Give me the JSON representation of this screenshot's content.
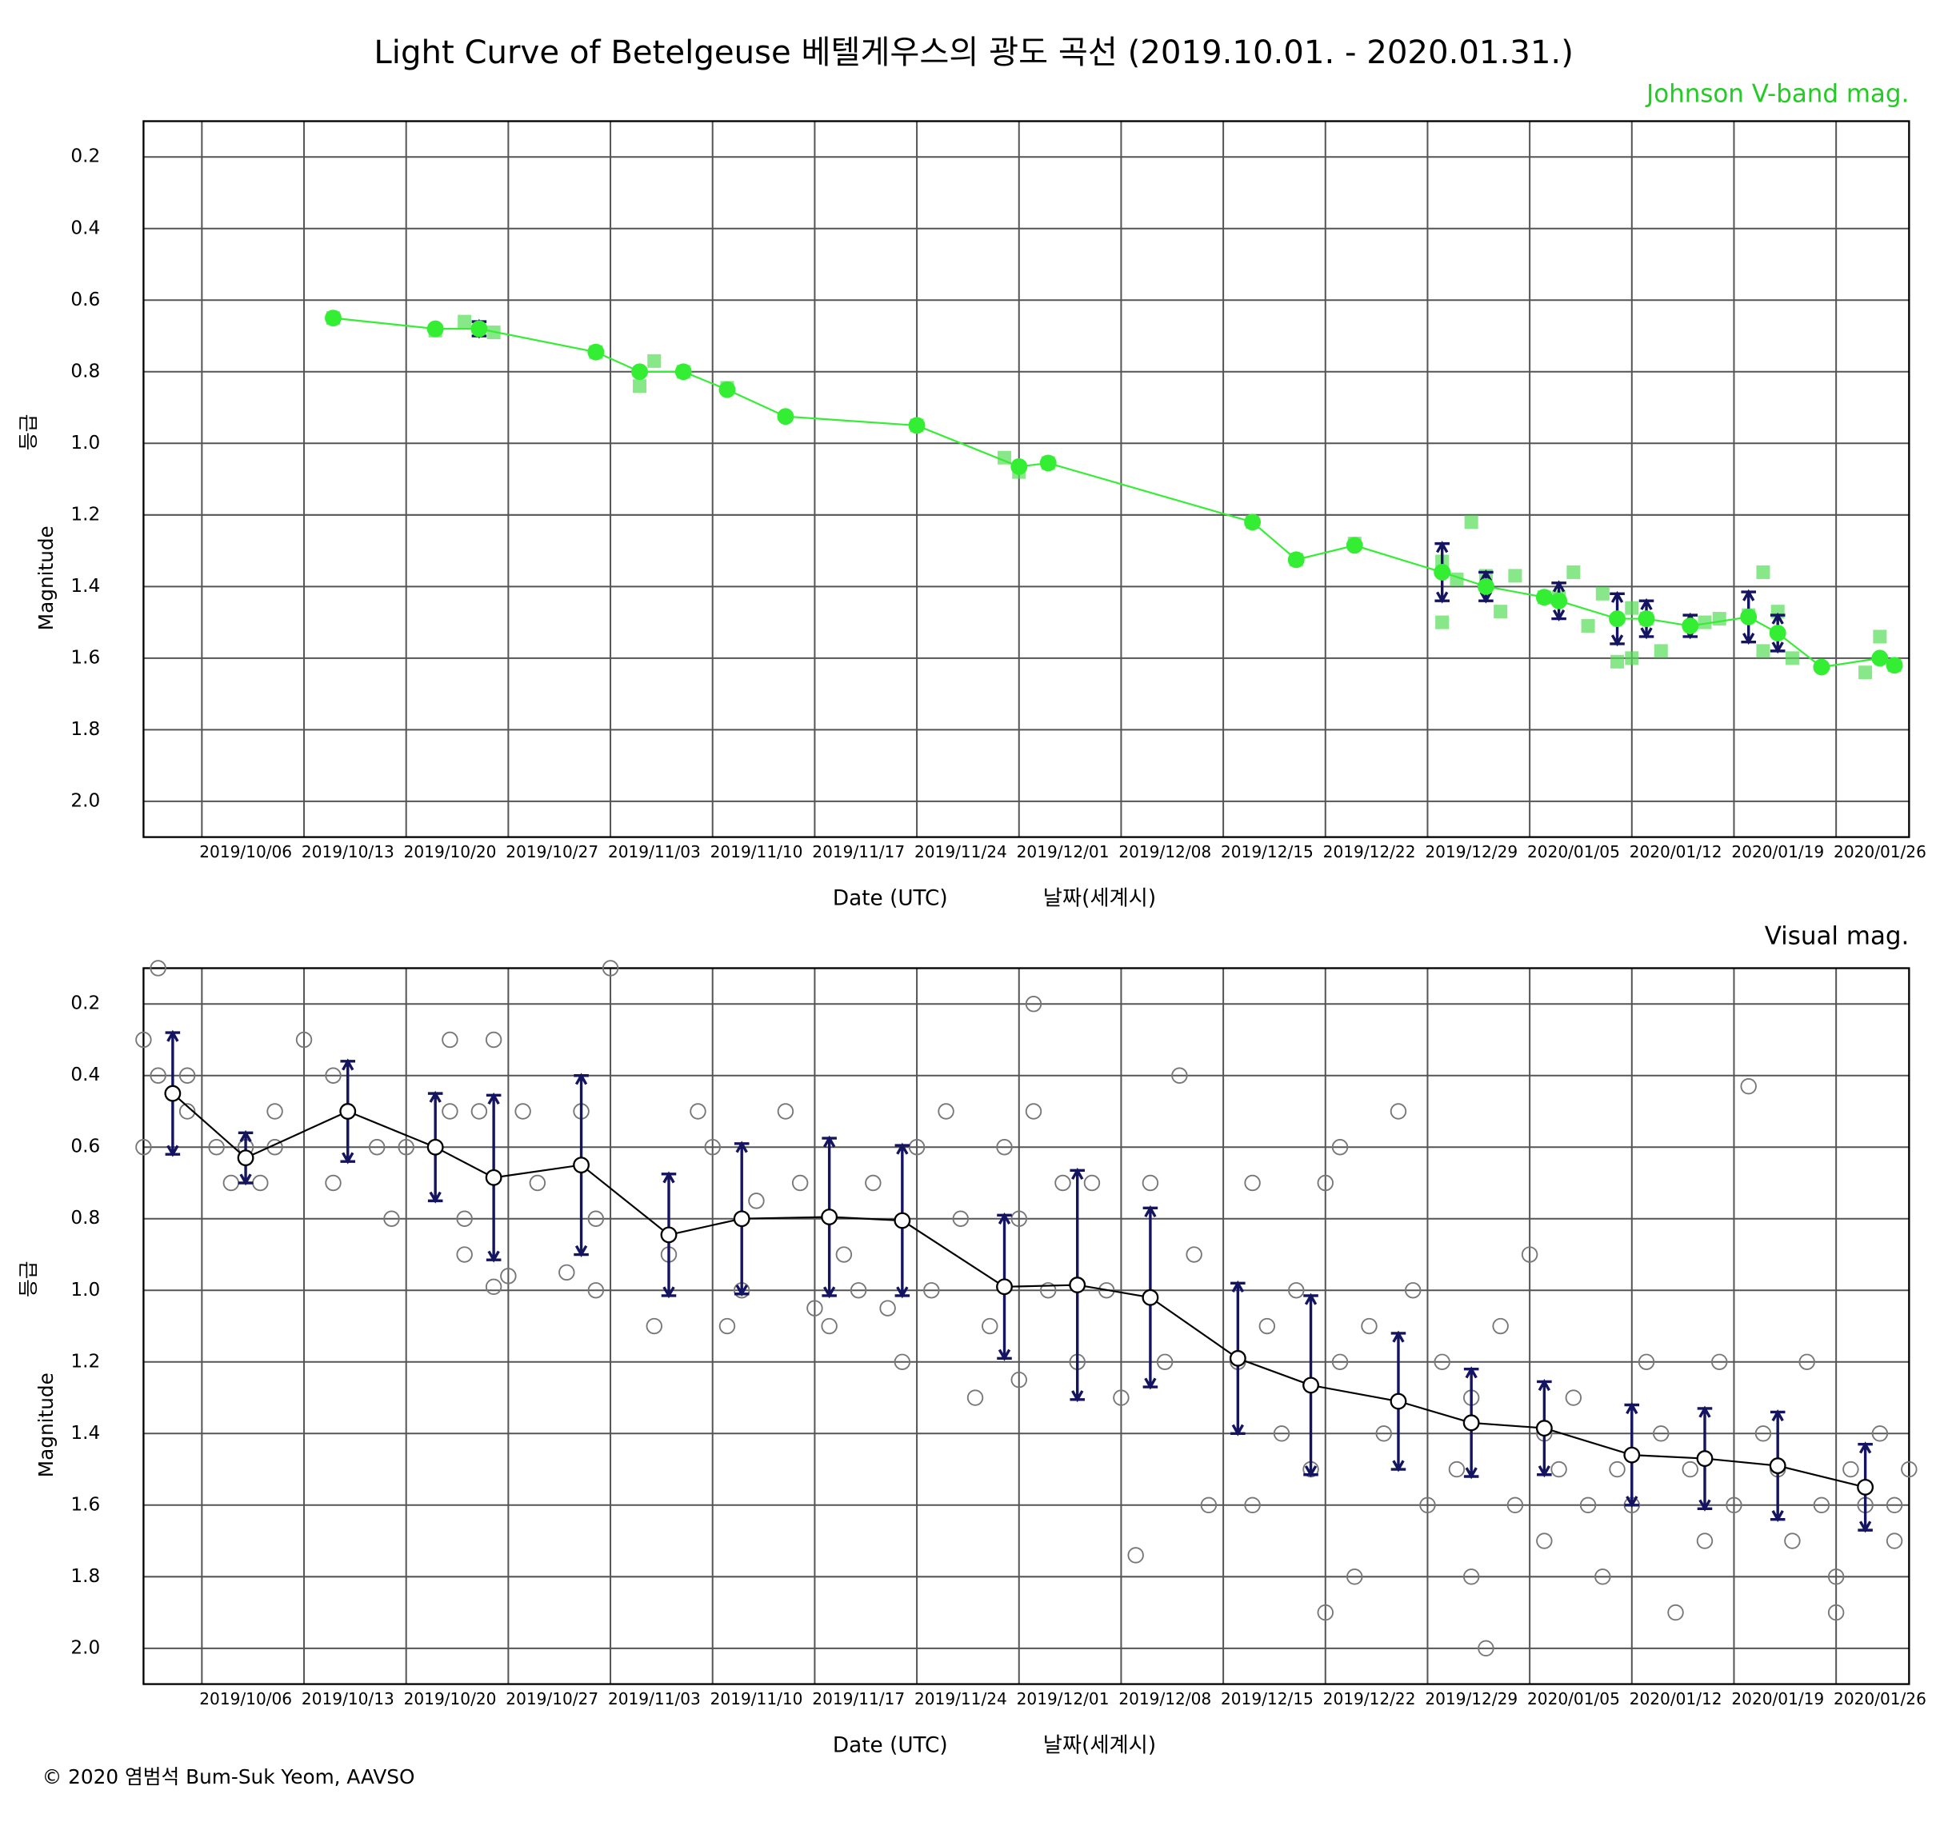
{
  "title": "Light Curve of Betelgeuse   베텔게우스의 광도 곡선 (2019.10.01. - 2020.01.31.)",
  "credit": "© 2020 염범석 Bum-Suk Yeom, AAVSO",
  "chart_data": [
    {
      "type": "scatter",
      "subtitle": "Johnson V-band mag.",
      "subtitle_color": "#22cc22",
      "xlabel": "Date (UTC)",
      "xlabel_ko": "날짜(세계시)",
      "ylabel": "Magnitude",
      "ylabel_ko": "등급",
      "xlim": [
        "2019/10/02",
        "2020/01/31"
      ],
      "xticks": [
        "2019/10/06",
        "2019/10/13",
        "2019/10/20",
        "2019/10/27",
        "2019/11/03",
        "2019/11/10",
        "2019/11/17",
        "2019/11/24",
        "2019/12/01",
        "2019/12/08",
        "2019/12/15",
        "2019/12/22",
        "2019/12/29",
        "2020/01/05",
        "2020/01/12",
        "2020/01/19",
        "2020/01/26"
      ],
      "ylim": [
        0.1,
        2.1
      ],
      "y_inverted": true,
      "yticks": [
        0.2,
        0.4,
        0.6,
        0.8,
        {
          "value": 1,
          "label": "1.0"
        },
        1.2,
        1.4,
        1.6,
        1.8,
        {
          "value": 2,
          "label": "2.0"
        }
      ],
      "grid": true,
      "series": [
        {
          "kind": "observations",
          "marker": "square",
          "color": "#55dd55",
          "x": [
            "2019/10/15",
            "2019/10/22",
            "2019/10/24",
            "2019/10/26",
            "2019/11/02",
            "2019/11/05",
            "2019/11/06",
            "2019/11/08",
            "2019/11/11",
            "2019/11/24",
            "2019/11/30",
            "2019/12/01",
            "2019/12/03",
            "2019/12/17",
            "2019/12/20",
            "2019/12/24",
            "2019/12/30",
            "2019/12/30",
            "2019/12/31",
            "2020/01/01",
            "2020/01/02",
            "2020/01/03",
            "2020/01/04",
            "2020/01/06",
            "2020/01/07",
            "2020/01/08",
            "2020/01/09",
            "2020/01/10",
            "2020/01/11",
            "2020/01/12",
            "2020/01/12",
            "2020/01/13",
            "2020/01/14",
            "2020/01/17",
            "2020/01/18",
            "2020/01/20",
            "2020/01/21",
            "2020/01/21",
            "2020/01/22",
            "2020/01/23",
            "2020/01/28",
            "2020/01/29",
            "2020/01/30"
          ],
          "values": [
            0.65,
            0.685,
            0.66,
            0.69,
            0.745,
            0.84,
            0.77,
            0.8,
            0.845,
            0.95,
            1.04,
            1.08,
            1.055,
            1.22,
            1.325,
            1.28,
            1.33,
            1.5,
            1.38,
            1.22,
            1.37,
            1.47,
            1.37,
            1.43,
            1.43,
            1.36,
            1.51,
            1.42,
            1.61,
            1.6,
            1.46,
            1.49,
            1.58,
            1.5,
            1.49,
            1.48,
            1.36,
            1.58,
            1.47,
            1.6,
            1.64,
            1.54,
            1.62
          ]
        },
        {
          "kind": "mean",
          "color": "#33ee33",
          "error_color": "#141460",
          "x": [
            "2019/10/15",
            "2019/10/22",
            "2019/10/25",
            "2019/11/02",
            "2019/11/05",
            "2019/11/08",
            "2019/11/11",
            "2019/11/15",
            "2019/11/24",
            "2019/12/01",
            "2019/12/03",
            "2019/12/17",
            "2019/12/20",
            "2019/12/24",
            "2019/12/30",
            "2020/01/02",
            "2020/01/06",
            "2020/01/07",
            "2020/01/11",
            "2020/01/13",
            "2020/01/16",
            "2020/01/20",
            "2020/01/22",
            "2020/01/25",
            "2020/01/29",
            "2020/01/30"
          ],
          "values": [
            0.65,
            0.68,
            0.68,
            0.745,
            0.8,
            0.8,
            0.85,
            0.925,
            0.95,
            1.065,
            1.055,
            1.22,
            1.325,
            1.285,
            1.36,
            1.4,
            1.43,
            1.44,
            1.49,
            1.49,
            1.51,
            1.485,
            1.53,
            1.625,
            1.6,
            1.62
          ],
          "errors": [
            null,
            null,
            0.02,
            null,
            null,
            null,
            null,
            null,
            null,
            null,
            null,
            null,
            null,
            null,
            0.08,
            0.04,
            null,
            0.05,
            0.07,
            0.05,
            0.03,
            0.07,
            0.05,
            null,
            null,
            null
          ]
        }
      ]
    },
    {
      "type": "scatter",
      "subtitle": "Visual mag.",
      "subtitle_color": "#000000",
      "xlabel": "Date (UTC)",
      "xlabel_ko": "날짜(세계시)",
      "ylabel": "Magnitude",
      "ylabel_ko": "등급",
      "xlim": [
        "2019/10/02",
        "2020/01/31"
      ],
      "xticks": [
        "2019/10/06",
        "2019/10/13",
        "2019/10/20",
        "2019/10/27",
        "2019/11/03",
        "2019/11/10",
        "2019/11/17",
        "2019/11/24",
        "2019/12/01",
        "2019/12/08",
        "2019/12/15",
        "2019/12/22",
        "2019/12/29",
        "2020/01/05",
        "2020/01/12",
        "2020/01/19",
        "2020/01/26"
      ],
      "ylim": [
        0.1,
        2.1
      ],
      "y_inverted": true,
      "yticks": [
        0.2,
        0.4,
        0.6,
        0.8,
        {
          "value": 1,
          "label": "1.0"
        },
        1.2,
        1.4,
        1.6,
        1.8,
        {
          "value": 2,
          "label": "2.0"
        }
      ],
      "grid": true,
      "series": [
        {
          "kind": "observations",
          "marker": "circle",
          "color": "#777777",
          "x": [
            "2019/10/02",
            "2019/10/02",
            "2019/10/03",
            "2019/10/03",
            "2019/10/05",
            "2019/10/05",
            "2019/10/07",
            "2019/10/08",
            "2019/10/09",
            "2019/10/10",
            "2019/10/11",
            "2019/10/11",
            "2019/10/13",
            "2019/10/15",
            "2019/10/15",
            "2019/10/18",
            "2019/10/19",
            "2019/10/20",
            "2019/10/23",
            "2019/10/23",
            "2019/10/24",
            "2019/10/24",
            "2019/10/25",
            "2019/10/26",
            "2019/10/26",
            "2019/10/27",
            "2019/10/28",
            "2019/10/29",
            "2019/10/31",
            "2019/11/01",
            "2019/11/02",
            "2019/11/02",
            "2019/11/03",
            "2019/11/06",
            "2019/11/07",
            "2019/11/09",
            "2019/11/10",
            "2019/11/11",
            "2019/11/12",
            "2019/11/13",
            "2019/11/15",
            "2019/11/16",
            "2019/11/17",
            "2019/11/18",
            "2019/11/19",
            "2019/11/20",
            "2019/11/21",
            "2019/11/22",
            "2019/11/23",
            "2019/11/24",
            "2019/11/25",
            "2019/11/26",
            "2019/11/27",
            "2019/11/28",
            "2019/11/29",
            "2019/11/30",
            "2019/12/01",
            "2019/12/01",
            "2019/12/02",
            "2019/12/02",
            "2019/12/03",
            "2019/12/04",
            "2019/12/05",
            "2019/12/06",
            "2019/12/07",
            "2019/12/08",
            "2019/12/09",
            "2019/12/10",
            "2019/12/11",
            "2019/12/12",
            "2019/12/13",
            "2019/12/14",
            "2019/12/16",
            "2019/12/17",
            "2019/12/17",
            "2019/12/18",
            "2019/12/19",
            "2019/12/20",
            "2019/12/21",
            "2019/12/22",
            "2019/12/22",
            "2019/12/23",
            "2019/12/23",
            "2019/12/24",
            "2019/12/25",
            "2019/12/26",
            "2019/12/27",
            "2019/12/28",
            "2019/12/29",
            "2019/12/30",
            "2019/12/31",
            "2020/01/01",
            "2020/01/01",
            "2020/01/02",
            "2020/01/03",
            "2020/01/04",
            "2020/01/05",
            "2020/01/06",
            "2020/01/06",
            "2020/01/07",
            "2020/01/08",
            "2020/01/09",
            "2020/01/10",
            "2020/01/11",
            "2020/01/12",
            "2020/01/13",
            "2020/01/14",
            "2020/01/15",
            "2020/01/16",
            "2020/01/17",
            "2020/01/18",
            "2020/01/19",
            "2020/01/20",
            "2020/01/21",
            "2020/01/22",
            "2020/01/23",
            "2020/01/24",
            "2020/01/25",
            "2020/01/26",
            "2020/01/26",
            "2020/01/27",
            "2020/01/28",
            "2020/01/29",
            "2020/01/30",
            "2020/01/30",
            "2020/01/31"
          ],
          "values": [
            0.3,
            0.6,
            0.4,
            0.1,
            0.5,
            0.4,
            0.6,
            0.7,
            0.6,
            0.7,
            0.6,
            0.5,
            0.3,
            0.4,
            0.7,
            0.6,
            0.8,
            0.6,
            0.3,
            0.5,
            0.8,
            0.9,
            0.5,
            0.3,
            0.99,
            0.96,
            0.5,
            0.7,
            0.95,
            0.5,
            0.8,
            1.0,
            0.1,
            1.1,
            0.9,
            0.5,
            0.6,
            1.1,
            1.0,
            0.75,
            0.5,
            0.7,
            1.05,
            1.1,
            0.9,
            1.0,
            0.7,
            1.05,
            1.2,
            0.6,
            1.0,
            0.5,
            0.8,
            1.3,
            1.1,
            0.6,
            0.8,
            1.25,
            0.2,
            0.5,
            1.0,
            0.7,
            1.2,
            0.7,
            1.0,
            1.3,
            1.74,
            0.7,
            1.2,
            0.4,
            0.9,
            1.6,
            1.2,
            0.7,
            1.6,
            1.1,
            1.4,
            1.0,
            1.5,
            1.9,
            0.7,
            0.6,
            1.2,
            1.8,
            1.1,
            1.4,
            0.5,
            1.0,
            1.6,
            1.2,
            1.5,
            1.3,
            1.8,
            2.0,
            1.1,
            1.6,
            0.9,
            1.4,
            1.7,
            1.5,
            1.3,
            1.6,
            1.8,
            1.5,
            1.6,
            1.2,
            1.4,
            1.9,
            1.5,
            1.7,
            1.2,
            1.6,
            0.43,
            1.4,
            1.5,
            1.7,
            1.2,
            1.6,
            1.9,
            1.8,
            1.5,
            1.6,
            1.4,
            1.7,
            1.6,
            1.5
          ]
        },
        {
          "kind": "mean",
          "color": "#000000",
          "error_color": "#141460",
          "x": [
            "2019/10/04",
            "2019/10/09",
            "2019/10/16",
            "2019/10/22",
            "2019/10/26",
            "2019/11/01",
            "2019/11/07",
            "2019/11/12",
            "2019/11/18",
            "2019/11/23",
            "2019/11/30",
            "2019/12/05",
            "2019/12/10",
            "2019/12/16",
            "2019/12/21",
            "2019/12/27",
            "2020/01/01",
            "2020/01/06",
            "2020/01/12",
            "2020/01/17",
            "2020/01/22",
            "2020/01/28"
          ],
          "values": [
            0.45,
            0.63,
            0.5,
            0.6,
            0.685,
            0.65,
            0.845,
            0.8,
            0.795,
            0.805,
            0.99,
            0.985,
            1.02,
            1.19,
            1.265,
            1.31,
            1.37,
            1.385,
            1.46,
            1.47,
            1.49,
            1.55
          ],
          "errors": [
            0.17,
            0.07,
            0.14,
            0.15,
            0.23,
            0.25,
            0.17,
            0.21,
            0.22,
            0.21,
            0.2,
            0.32,
            0.25,
            0.21,
            0.25,
            0.19,
            0.15,
            0.13,
            0.14,
            0.14,
            0.15,
            0.12
          ]
        }
      ]
    }
  ]
}
